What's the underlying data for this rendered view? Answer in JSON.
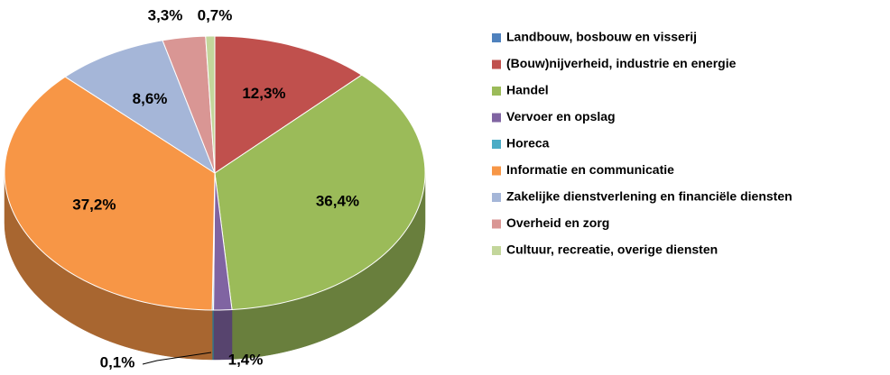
{
  "chart_data": {
    "type": "pie",
    "categories": [
      "Landbouw, bosbouw en visserij",
      "(Bouw)nijverheid, industrie en energie",
      "Handel",
      "Vervoer en opslag",
      "Horeca",
      "Informatie en communicatie",
      "Zakelijke dienstverlening en financiële diensten",
      "Overheid en zorg",
      "Cultuur, recreatie, overige diensten"
    ],
    "values": [
      0,
      12.3,
      36.4,
      1.4,
      0.1,
      37.2,
      8.6,
      3.3,
      0.7
    ],
    "value_labels": [
      null,
      "12,3%",
      "36,4%",
      "1,4%",
      "0,1%",
      "37,2%",
      "8,6%",
      "3,3%",
      "0,7%"
    ],
    "colors": [
      "#4f81bd",
      "#c0504d",
      "#9bbb59",
      "#8064a2",
      "#4bacc6",
      "#f79646",
      "#a5b6d8",
      "#d99694",
      "#c3d69b"
    ],
    "legend": "right"
  }
}
